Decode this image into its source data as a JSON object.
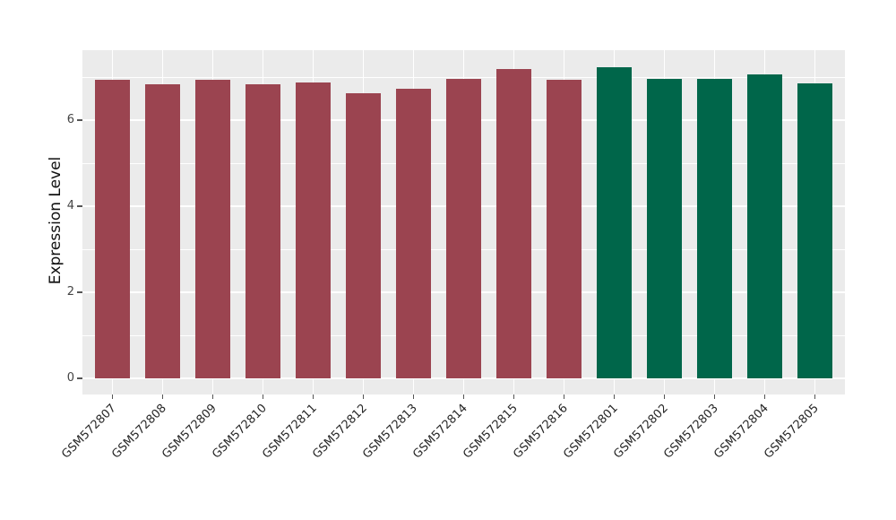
{
  "chart_data": {
    "type": "bar",
    "title": "",
    "xlabel": "",
    "ylabel": "Expression Level",
    "categories": [
      "GSM572807",
      "GSM572808",
      "GSM572809",
      "GSM572810",
      "GSM572811",
      "GSM572812",
      "GSM572813",
      "GSM572814",
      "GSM572815",
      "GSM572816",
      "GSM572801",
      "GSM572802",
      "GSM572803",
      "GSM572804",
      "GSM572805"
    ],
    "values": [
      6.95,
      6.83,
      6.95,
      6.84,
      6.88,
      6.62,
      6.73,
      6.96,
      7.2,
      6.95,
      7.24,
      6.96,
      6.96,
      7.06,
      6.85
    ],
    "bar_colors": [
      "#9B4450",
      "#9B4450",
      "#9B4450",
      "#9B4450",
      "#9B4450",
      "#9B4450",
      "#9B4450",
      "#9B4450",
      "#9B4450",
      "#9B4450",
      "#00664A",
      "#00664A",
      "#00664A",
      "#00664A",
      "#00664A"
    ],
    "groups": [
      {
        "color": "#9B4450",
        "samples": [
          "GSM572807",
          "GSM572808",
          "GSM572809",
          "GSM572810",
          "GSM572811",
          "GSM572812",
          "GSM572813",
          "GSM572814",
          "GSM572815",
          "GSM572816"
        ]
      },
      {
        "color": "#00664A",
        "samples": [
          "GSM572801",
          "GSM572802",
          "GSM572803",
          "GSM572804",
          "GSM572805"
        ]
      }
    ],
    "yticks": [
      0,
      2,
      4,
      6
    ],
    "yminorticks": [
      1,
      3,
      5,
      7
    ],
    "ylim": [
      -0.37,
      7.63
    ],
    "grid": "on",
    "legend": "none",
    "x_tick_rotation": 45,
    "style": {
      "figure_bg": "#FFFFFF",
      "panel_bg": "#EBEBEB",
      "grid_color": "#FFFFFF",
      "tick_mark_color": "#555555",
      "y_tick_text_color": "#444444",
      "x_tick_text_color": "#262626",
      "axis_title_color": "#111111"
    }
  }
}
